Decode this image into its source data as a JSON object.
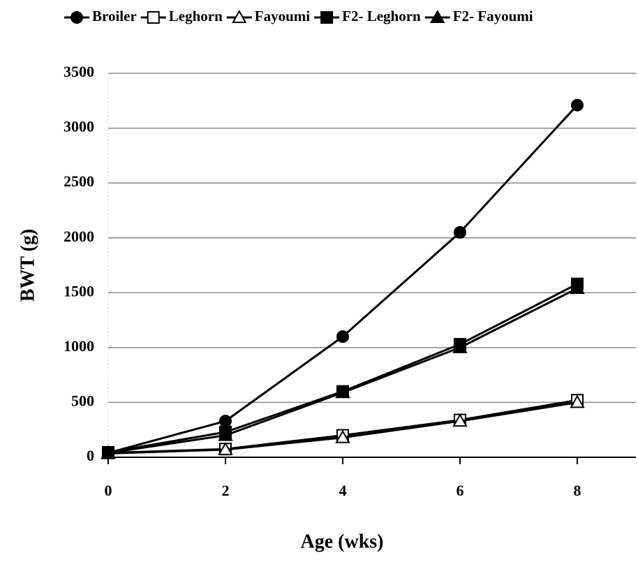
{
  "chart_data": {
    "type": "line",
    "x_label": "Age (wks)",
    "y_label": "BWT (g)",
    "x": [
      0,
      2,
      4,
      6,
      8
    ],
    "xlim": [
      0,
      9
    ],
    "xticks": [
      0,
      2,
      4,
      6,
      8
    ],
    "ylim": [
      0,
      3500
    ],
    "yticks": [
      0,
      500,
      1000,
      1500,
      2000,
      2500,
      3000,
      3500
    ],
    "grid": true,
    "legend": "top",
    "series": [
      {
        "name": "Broiler",
        "color": "#000000",
        "marker": "circle",
        "filled": true,
        "values": [
          40,
          330,
          1100,
          2050,
          3210
        ]
      },
      {
        "name": "Leghorn",
        "color": "#000000",
        "marker": "square",
        "filled": false,
        "values": [
          40,
          75,
          200,
          340,
          520
        ]
      },
      {
        "name": "Fayoumi",
        "color": "#000000",
        "marker": "triangle",
        "filled": false,
        "values": [
          35,
          70,
          180,
          330,
          500
        ]
      },
      {
        "name": "F2- Leghorn",
        "color": "#000000",
        "marker": "square",
        "filled": true,
        "values": [
          45,
          230,
          600,
          1030,
          1580
        ]
      },
      {
        "name": "F2- Fayoumi",
        "color": "#000000",
        "marker": "triangle",
        "filled": true,
        "values": [
          40,
          200,
          590,
          1000,
          1540
        ]
      }
    ]
  }
}
